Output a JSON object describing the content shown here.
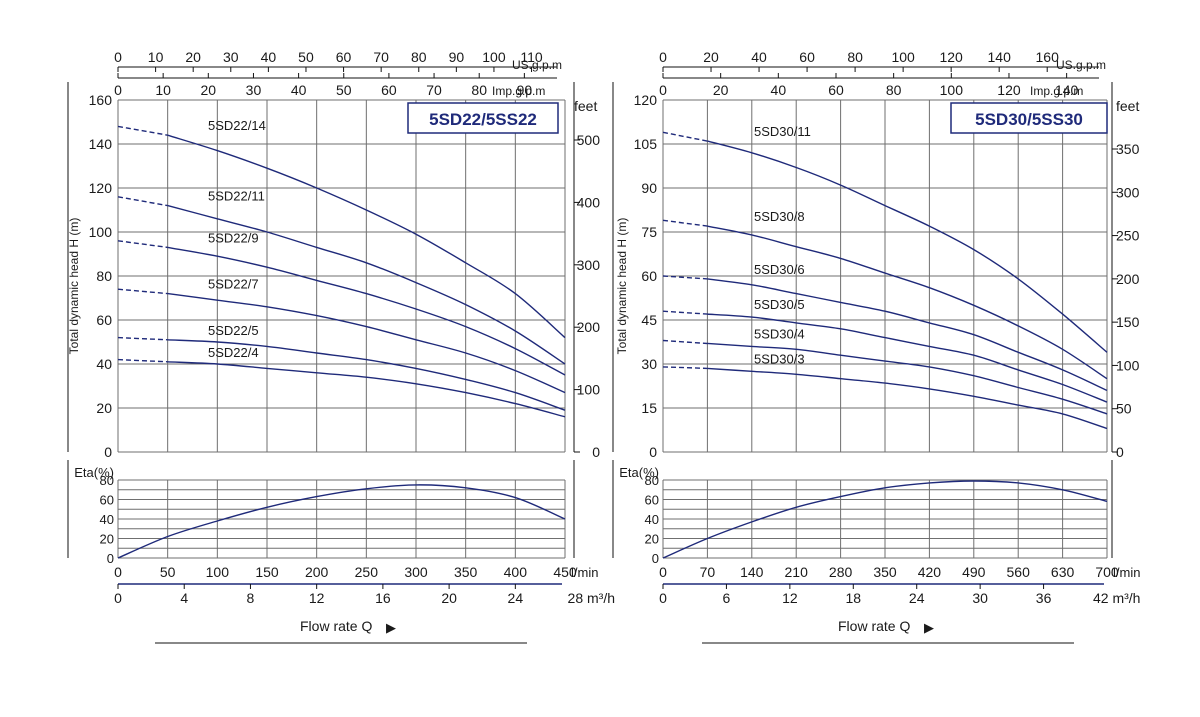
{
  "colors": {
    "curve": "#1f2a7a",
    "grid": "#6f6f6f",
    "axis": "#111111",
    "title_border": "#1f2a7a",
    "title_text": "#1f2a7a",
    "text": "#1a1a1a"
  },
  "charts": [
    {
      "title": "5SD22/5SS22",
      "ylabel": "Total  dynamic  head  H (m)",
      "right_unit": "feet",
      "eta_label": "Eta(%)",
      "flow_label": "Flow rate Q",
      "top1_unit": "US.g.p.m",
      "top2_unit": "Imp.g.p.m",
      "lmin_unit": "l/min",
      "m3h_unit": "28 m³/h",
      "arrow_glyph": "▶",
      "y_ticks": [
        "0",
        "20",
        "40",
        "60",
        "80",
        "100",
        "120",
        "140",
        "160"
      ],
      "feet_ticks": [
        "0",
        "100",
        "200",
        "300",
        "400",
        "500"
      ],
      "top1_ticks": [
        "0",
        "10",
        "20",
        "30",
        "40",
        "50",
        "60",
        "70",
        "80",
        "90",
        "100",
        "110"
      ],
      "top2_ticks": [
        "0",
        "10",
        "20",
        "30",
        "40",
        "50",
        "60",
        "70",
        "80",
        "90"
      ],
      "lmin_ticks": [
        "0",
        "50",
        "100",
        "150",
        "200",
        "250",
        "300",
        "350",
        "400",
        "450"
      ],
      "m3h_ticks": [
        "0",
        "4",
        "8",
        "12",
        "16",
        "20",
        "24"
      ],
      "eta_ticks": [
        "0",
        "20",
        "40",
        "60",
        "80"
      ]
    },
    {
      "title": "5SD30/5SS30",
      "ylabel": "Total  dynamic  head  H (m)",
      "right_unit": "feet",
      "eta_label": "Eta(%)",
      "flow_label": "Flow rate Q",
      "top1_unit": "US.g.p.m",
      "top2_unit": "Imp.g.p.m",
      "lmin_unit": "l/min",
      "m3h_unit": "42 m³/h",
      "arrow_glyph": "▶",
      "y_ticks": [
        "0",
        "15",
        "30",
        "45",
        "60",
        "75",
        "90",
        "105",
        "120"
      ],
      "feet_ticks": [
        "0",
        "50",
        "100",
        "150",
        "200",
        "250",
        "300",
        "350"
      ],
      "top1_ticks": [
        "0",
        "20",
        "40",
        "60",
        "80",
        "100",
        "120",
        "140",
        "160"
      ],
      "top2_ticks": [
        "0",
        "20",
        "40",
        "60",
        "80",
        "100",
        "120",
        "140"
      ],
      "lmin_ticks": [
        "0",
        "70",
        "140",
        "210",
        "280",
        "350",
        "420",
        "490",
        "560",
        "630",
        "700"
      ],
      "m3h_ticks": [
        "0",
        "6",
        "12",
        "18",
        "24",
        "30",
        "36"
      ],
      "eta_ticks": [
        "0",
        "20",
        "40",
        "60",
        "80"
      ]
    }
  ],
  "chart_data": [
    {
      "type": "line",
      "title": "5SD22/5SS22",
      "xlabel": "Flow rate Q (l/min)",
      "ylabel": "Total dynamic head H (m)",
      "xlim": [
        0,
        450
      ],
      "ylim": [
        0,
        160
      ],
      "grid": true,
      "dashed_until": 50,
      "series": [
        {
          "name": "5SD22/14",
          "x": [
            0,
            50,
            100,
            150,
            200,
            250,
            300,
            350,
            400,
            450
          ],
          "y": [
            148,
            144,
            137,
            129,
            120,
            110,
            99,
            86,
            72,
            52
          ]
        },
        {
          "name": "5SD22/11",
          "x": [
            0,
            50,
            100,
            150,
            200,
            250,
            300,
            350,
            400,
            450
          ],
          "y": [
            116,
            112,
            106,
            100,
            93,
            86,
            77,
            67,
            55,
            40
          ]
        },
        {
          "name": "5SD22/9",
          "x": [
            0,
            50,
            100,
            150,
            200,
            250,
            300,
            350,
            400,
            450
          ],
          "y": [
            96,
            93,
            89,
            84,
            78,
            72,
            65,
            57,
            47,
            35
          ]
        },
        {
          "name": "5SD22/7",
          "x": [
            0,
            50,
            100,
            150,
            200,
            250,
            300,
            350,
            400,
            450
          ],
          "y": [
            74,
            72,
            69,
            66,
            62,
            57,
            51,
            45,
            37,
            27
          ]
        },
        {
          "name": "5SD22/5",
          "x": [
            0,
            50,
            100,
            150,
            200,
            250,
            300,
            350,
            400,
            450
          ],
          "y": [
            52,
            51,
            50,
            48,
            45,
            42,
            38,
            33,
            27,
            19
          ]
        },
        {
          "name": "5SD22/4",
          "x": [
            0,
            50,
            100,
            150,
            200,
            250,
            300,
            350,
            400,
            450
          ],
          "y": [
            42,
            41,
            40,
            38,
            36,
            34,
            31,
            27,
            22,
            16
          ]
        }
      ],
      "efficiency": {
        "ylim": [
          0,
          80
        ],
        "x": [
          0,
          50,
          100,
          150,
          200,
          250,
          300,
          350,
          400,
          450
        ],
        "y": [
          0,
          22,
          38,
          52,
          63,
          71,
          75,
          72,
          62,
          40
        ]
      }
    },
    {
      "type": "line",
      "title": "5SD30/5SS30",
      "xlabel": "Flow rate Q (l/min)",
      "ylabel": "Total dynamic head H (m)",
      "xlim": [
        0,
        700
      ],
      "ylim": [
        0,
        120
      ],
      "grid": true,
      "dashed_until": 70,
      "series": [
        {
          "name": "5SD30/11",
          "x": [
            0,
            70,
            140,
            210,
            280,
            350,
            420,
            490,
            560,
            630,
            700
          ],
          "y": [
            109,
            106,
            102,
            97,
            91,
            84,
            77,
            69,
            59,
            47,
            34
          ]
        },
        {
          "name": "5SD30/8",
          "x": [
            0,
            70,
            140,
            210,
            280,
            350,
            420,
            490,
            560,
            630,
            700
          ],
          "y": [
            79,
            77,
            74,
            70,
            66,
            61,
            56,
            50,
            43,
            35,
            25
          ]
        },
        {
          "name": "5SD30/6",
          "x": [
            0,
            70,
            140,
            210,
            280,
            350,
            420,
            490,
            560,
            630,
            700
          ],
          "y": [
            60,
            59,
            57,
            54,
            51,
            48,
            44,
            40,
            34,
            28,
            21
          ]
        },
        {
          "name": "5SD30/5",
          "x": [
            0,
            70,
            140,
            210,
            280,
            350,
            420,
            490,
            560,
            630,
            700
          ],
          "y": [
            48,
            47,
            46,
            44,
            42,
            39,
            36,
            33,
            28,
            23,
            17
          ]
        },
        {
          "name": "5SD30/4",
          "x": [
            0,
            70,
            140,
            210,
            280,
            350,
            420,
            490,
            560,
            630,
            700
          ],
          "y": [
            38,
            37,
            36,
            35,
            33,
            31,
            29,
            26,
            22,
            18,
            13
          ]
        },
        {
          "name": "5SD30/3",
          "x": [
            0,
            70,
            140,
            210,
            280,
            350,
            420,
            490,
            560,
            630,
            700
          ],
          "y": [
            29,
            28.5,
            27.5,
            26.5,
            25,
            23.5,
            21.5,
            19,
            16,
            13,
            8
          ]
        }
      ],
      "efficiency": {
        "ylim": [
          0,
          80
        ],
        "x": [
          0,
          70,
          140,
          210,
          280,
          350,
          420,
          490,
          560,
          630,
          700
        ],
        "y": [
          0,
          20,
          37,
          52,
          63,
          72,
          77,
          79,
          77,
          70,
          58
        ]
      }
    }
  ]
}
